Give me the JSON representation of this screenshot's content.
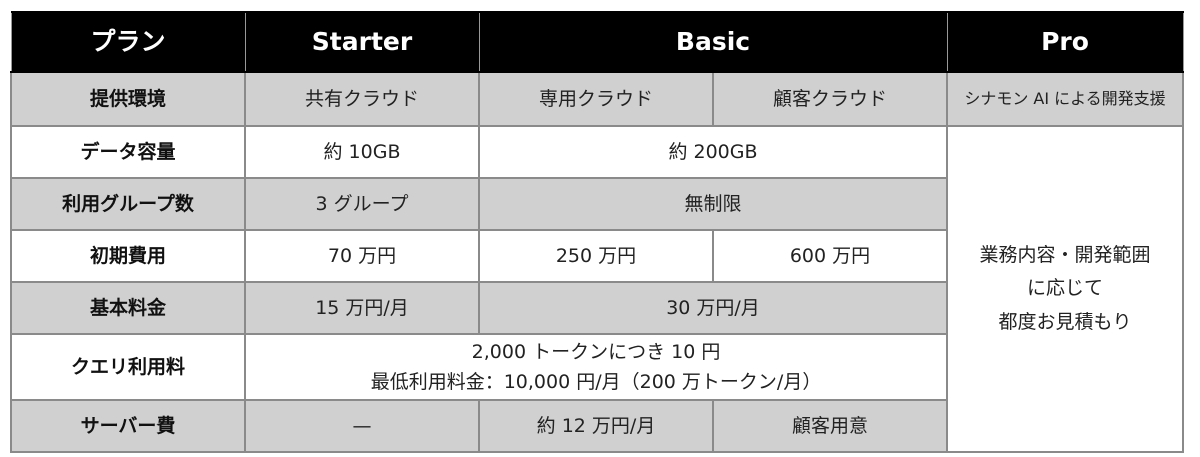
{
  "header": {
    "plan": "プラン",
    "starter": "Starter",
    "basic": "Basic",
    "pro": "Pro"
  },
  "rows": {
    "env": {
      "label": "提供環境",
      "starter": "共有クラウド",
      "basic_a": "専用クラウド",
      "basic_b": "顧客クラウド",
      "pro": "シナモン AI による開発支援"
    },
    "data": {
      "label": "データ容量",
      "starter": "約 10GB",
      "basic": "約 200GB"
    },
    "groups": {
      "label": "利用グループ数",
      "starter": "3 グループ",
      "basic": "無制限"
    },
    "initial": {
      "label": "初期費用",
      "starter": "70 万円",
      "basic_a": "250 万円",
      "basic_b": "600 万円"
    },
    "base": {
      "label": "基本料金",
      "starter": "15 万円/月",
      "basic": "30 万円/月"
    },
    "query": {
      "label": "クエリ利用料",
      "line1": "2,000 トークンにつき 10 円",
      "line2": "最低利用料金：10,000 円/月（200 万トークン/月）"
    },
    "server": {
      "label": "サーバー費",
      "starter": "—",
      "basic_a": "約 12 万円/月",
      "basic_b": "顧客用意"
    }
  },
  "pro_note": {
    "line1": "業務内容・開発範囲",
    "line2": "に応じて",
    "line3": "都度お見積もり"
  },
  "colors": {
    "header_bg": "#000000",
    "gray_row": "#d0d0d0",
    "border": "#8a8a8a"
  }
}
